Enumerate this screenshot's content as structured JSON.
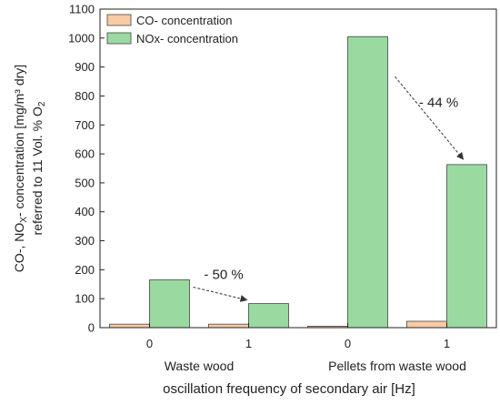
{
  "chart_data": {
    "type": "bar",
    "x": [
      "0",
      "1",
      "0",
      "1"
    ],
    "groups": [
      "Waste wood",
      "Pellets from waste wood"
    ],
    "series": [
      {
        "name": "CO- concentration",
        "values": [
          12,
          12,
          5,
          22
        ],
        "color": "#F8CBA4"
      },
      {
        "name": "NOx- concentration",
        "values": [
          165,
          83,
          1005,
          563
        ],
        "color": "#9AD9A0"
      }
    ],
    "xlabel": "oscillation frequency of secondary air [Hz]",
    "ylabel_line1_parts": [
      "CO-, NO",
      "X",
      "- concentration [mg/m³ dry]"
    ],
    "ylabel_line2_parts": [
      "referred to 11 Vol. % O",
      "2"
    ],
    "ylim": [
      0,
      1100
    ],
    "yticks": [
      0,
      100,
      200,
      300,
      400,
      500,
      600,
      700,
      800,
      900,
      1000,
      1100
    ],
    "grid": false,
    "legend_position": "top-left",
    "annotations": [
      {
        "text": "- 50 %",
        "from_index": 0,
        "to_index": 1
      },
      {
        "text": "- 44 %",
        "from_index": 2,
        "to_index": 3
      }
    ]
  }
}
